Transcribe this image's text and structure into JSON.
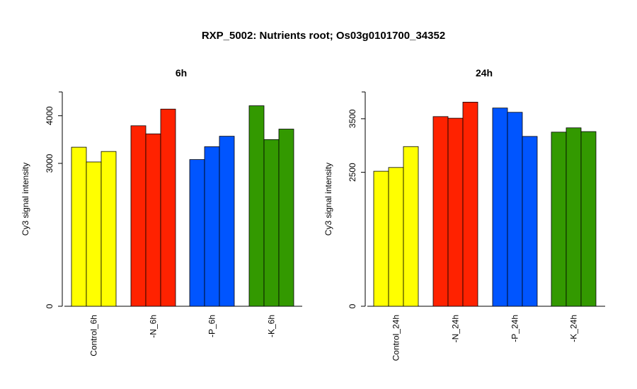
{
  "title": "RXP_5002: Nutrients root; Os03g0101700_34352",
  "chart_data": [
    {
      "type": "bar",
      "title": "6h",
      "ylabel": "Cy3 signal intensity",
      "xlabel": "",
      "ylim": [
        0,
        4500
      ],
      "yticks": [
        0,
        3000,
        4000
      ],
      "grid": false,
      "legend": "none",
      "categories": [
        "Control_6h",
        "-N_6h",
        "-P_6h",
        "-K_6h"
      ],
      "colors": [
        "#ffff00",
        "#ff2200",
        "#0055ff",
        "#339900"
      ],
      "values": [
        [
          3340,
          3030,
          3250
        ],
        [
          3790,
          3620,
          4140
        ],
        [
          3080,
          3350,
          3570
        ],
        [
          4210,
          3500,
          3720
        ]
      ]
    },
    {
      "type": "bar",
      "title": "24h",
      "ylabel": "Cy3 signal intensity",
      "xlabel": "",
      "ylim": [
        0,
        4000
      ],
      "yticks": [
        0,
        2500,
        3500
      ],
      "grid": false,
      "legend": "none",
      "categories": [
        "Control_24h",
        "-N_24h",
        "-P_24h",
        "-K_24h"
      ],
      "colors": [
        "#ffff00",
        "#ff2200",
        "#0055ff",
        "#339900"
      ],
      "values": [
        [
          2520,
          2590,
          2980
        ],
        [
          3540,
          3510,
          3810
        ],
        [
          3700,
          3620,
          3170
        ],
        [
          3250,
          3330,
          3260
        ]
      ]
    }
  ]
}
